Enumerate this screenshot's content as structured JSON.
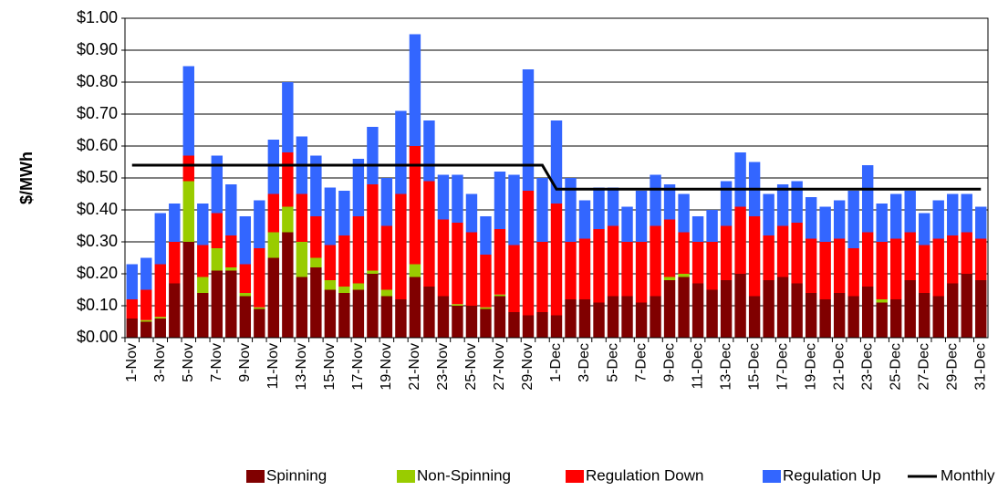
{
  "chart_data": {
    "type": "bar",
    "stacked": true,
    "ylabel": "$/MWh",
    "categories": [
      "1-Nov",
      null,
      "3-Nov",
      null,
      "5-Nov",
      null,
      "7-Nov",
      null,
      "9-Nov",
      null,
      "11-Nov",
      null,
      "13-Nov",
      null,
      "15-Nov",
      null,
      "17-Nov",
      null,
      "19-Nov",
      null,
      "21-Nov",
      null,
      "23-Nov",
      null,
      "25-Nov",
      null,
      "27-Nov",
      null,
      "29-Nov",
      null,
      "1-Dec",
      null,
      "3-Dec",
      null,
      "5-Dec",
      null,
      "7-Dec",
      null,
      "9-Dec",
      null,
      "11-Dec",
      null,
      "13-Dec",
      null,
      "15-Dec",
      null,
      "17-Dec",
      null,
      "19-Dec",
      null,
      "21-Dec",
      null,
      "23-Dec",
      null,
      "25-Dec",
      null,
      "27-Dec",
      null,
      "29-Dec",
      null,
      "31-Dec"
    ],
    "series": [
      {
        "name": "Spinning",
        "type": "bar",
        "color": "#800000",
        "values": [
          0.06,
          0.05,
          0.06,
          0.17,
          0.3,
          0.14,
          0.21,
          0.21,
          0.13,
          0.09,
          0.25,
          0.33,
          0.19,
          0.22,
          0.15,
          0.14,
          0.15,
          0.2,
          0.13,
          0.12,
          0.19,
          0.16,
          0.13,
          0.1,
          0.1,
          0.09,
          0.13,
          0.08,
          0.07,
          0.08,
          0.07,
          0.12,
          0.12,
          0.11,
          0.13,
          0.13,
          0.11,
          0.13,
          0.18,
          0.19,
          0.17,
          0.15,
          0.18,
          0.2,
          0.13,
          0.18,
          0.19,
          0.17,
          0.14,
          0.12,
          0.14,
          0.13,
          0.16,
          0.11,
          0.12,
          0.18,
          0.14,
          0.13,
          0.17,
          0.2,
          0.18
        ]
      },
      {
        "name": "Non-Spinning",
        "type": "bar",
        "color": "#99cc00",
        "values": [
          0,
          0.005,
          0.005,
          0,
          0.19,
          0.05,
          0.07,
          0.01,
          0.01,
          0.005,
          0.08,
          0.08,
          0.11,
          0.03,
          0.03,
          0.02,
          0.02,
          0.01,
          0.02,
          0,
          0.04,
          0,
          0,
          0.005,
          0,
          0.005,
          0.005,
          0,
          0,
          0,
          0,
          0,
          0,
          0,
          0,
          0,
          0,
          0,
          0.01,
          0.01,
          0,
          0,
          0,
          0,
          0,
          0,
          0,
          0,
          0,
          0,
          0,
          0,
          0,
          0.01,
          0,
          0,
          0,
          0,
          0,
          0,
          0
        ]
      },
      {
        "name": "Regulation Down",
        "type": "bar",
        "color": "#ff0000",
        "values": [
          0.06,
          0.095,
          0.165,
          0.13,
          0.08,
          0.1,
          0.11,
          0.1,
          0.09,
          0.185,
          0.12,
          0.17,
          0.15,
          0.13,
          0.11,
          0.16,
          0.21,
          0.27,
          0.2,
          0.33,
          0.37,
          0.33,
          0.24,
          0.255,
          0.23,
          0.165,
          0.205,
          0.21,
          0.39,
          0.22,
          0.35,
          0.18,
          0.19,
          0.23,
          0.22,
          0.17,
          0.19,
          0.22,
          0.18,
          0.13,
          0.13,
          0.15,
          0.17,
          0.21,
          0.25,
          0.14,
          0.16,
          0.19,
          0.17,
          0.18,
          0.17,
          0.15,
          0.17,
          0.18,
          0.19,
          0.15,
          0.15,
          0.18,
          0.15,
          0.13,
          0.13
        ]
      },
      {
        "name": "Regulation Up",
        "type": "bar",
        "color": "#3366ff",
        "values": [
          0.11,
          0.1,
          0.16,
          0.12,
          0.28,
          0.13,
          0.18,
          0.16,
          0.15,
          0.15,
          0.17,
          0.22,
          0.18,
          0.19,
          0.18,
          0.14,
          0.18,
          0.18,
          0.15,
          0.26,
          0.35,
          0.19,
          0.14,
          0.15,
          0.12,
          0.12,
          0.18,
          0.22,
          0.38,
          0.2,
          0.26,
          0.2,
          0.12,
          0.13,
          0.12,
          0.11,
          0.16,
          0.16,
          0.11,
          0.12,
          0.08,
          0.1,
          0.14,
          0.17,
          0.17,
          0.13,
          0.13,
          0.13,
          0.13,
          0.11,
          0.12,
          0.18,
          0.21,
          0.12,
          0.14,
          0.13,
          0.1,
          0.12,
          0.13,
          0.12,
          0.1
        ]
      },
      {
        "name": "Monthly Average",
        "type": "line",
        "color": "#000000",
        "values": [
          0.54,
          0.54,
          0.54,
          0.54,
          0.54,
          0.54,
          0.54,
          0.54,
          0.54,
          0.54,
          0.54,
          0.54,
          0.54,
          0.54,
          0.54,
          0.54,
          0.54,
          0.54,
          0.54,
          0.54,
          0.54,
          0.54,
          0.54,
          0.54,
          0.54,
          0.54,
          0.54,
          0.54,
          0.54,
          0.54,
          0.465,
          0.465,
          0.465,
          0.465,
          0.465,
          0.465,
          0.465,
          0.465,
          0.465,
          0.465,
          0.465,
          0.465,
          0.465,
          0.465,
          0.465,
          0.465,
          0.465,
          0.465,
          0.465,
          0.465,
          0.465,
          0.465,
          0.465,
          0.465,
          0.465,
          0.465,
          0.465,
          0.465,
          0.465,
          0.465,
          0.465
        ]
      }
    ],
    "ylim": [
      0,
      1
    ],
    "yticks": [
      {
        "value": 0,
        "label": "$0.00"
      },
      {
        "value": 0.1,
        "label": "$0.10"
      },
      {
        "value": 0.2,
        "label": "$0.20"
      },
      {
        "value": 0.3,
        "label": "$0.30"
      },
      {
        "value": 0.4,
        "label": "$0.40"
      },
      {
        "value": 0.5,
        "label": "$0.50"
      },
      {
        "value": 0.6,
        "label": "$0.60"
      },
      {
        "value": 0.7,
        "label": "$0.70"
      },
      {
        "value": 0.8,
        "label": "$0.80"
      },
      {
        "value": 0.9,
        "label": "$0.90"
      },
      {
        "value": 1,
        "label": "$1.00"
      }
    ],
    "grid": true,
    "legend": "bottom"
  }
}
